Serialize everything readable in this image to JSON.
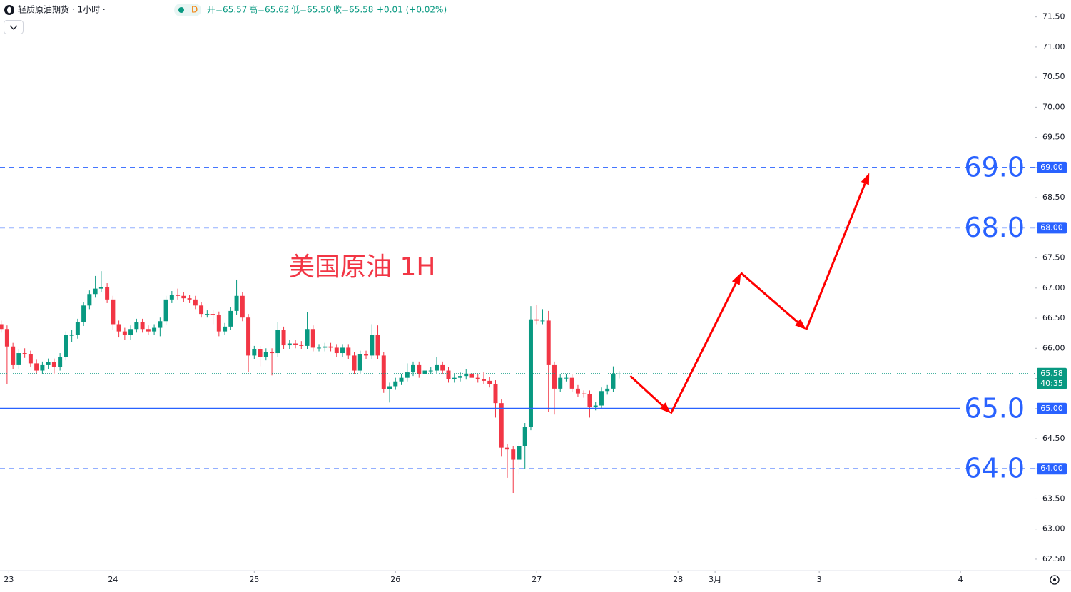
{
  "header": {
    "symbol": "轻质原油期货 · 1小时 ·",
    "badge": "D",
    "open": "开=65.57",
    "high": "高=65.62",
    "low": "低=65.50",
    "close": "收=65.58",
    "change": "+0.01 (+0.02%)"
  },
  "chart_data": {
    "type": "candlestick",
    "annotation": "美国原油 1H",
    "up_color": "#089981",
    "down_color": "#f23645",
    "x": [
      -19,
      -18,
      -17,
      -16,
      -15,
      -14,
      -13,
      -12,
      -11,
      -10,
      -9,
      -8,
      -7,
      -6,
      -5,
      -4,
      -3,
      -2,
      -1,
      0,
      1,
      2,
      3,
      4,
      5,
      6,
      7,
      8,
      9,
      10,
      11,
      12,
      13,
      14,
      15,
      16,
      17,
      18,
      19,
      20,
      21,
      22,
      23,
      24,
      25,
      26,
      27,
      28,
      29,
      30,
      31,
      32,
      33,
      34,
      35,
      36,
      37,
      38,
      39,
      40,
      41,
      42,
      43,
      44,
      45,
      46,
      47,
      48,
      49,
      50,
      51,
      52,
      53,
      54,
      55,
      56,
      57,
      58,
      59,
      60,
      61,
      62,
      63,
      64,
      65,
      66,
      67,
      68,
      69,
      70,
      71,
      72,
      73,
      74,
      75,
      76,
      77,
      78,
      79,
      80,
      81,
      82,
      83,
      84,
      85,
      86
    ],
    "open": [
      66.4,
      66.32,
      66.03,
      65.72,
      65.92,
      65.9,
      65.75,
      65.63,
      65.72,
      65.77,
      65.69,
      65.86,
      66.22,
      66.22,
      66.43,
      66.71,
      66.9,
      66.99,
      67.02,
      66.81,
      66.4,
      66.28,
      66.22,
      66.32,
      66.43,
      66.32,
      66.28,
      66.34,
      66.45,
      66.81,
      66.89,
      66.87,
      66.83,
      66.81,
      66.71,
      66.57,
      66.57,
      66.55,
      66.28,
      66.36,
      66.62,
      66.87,
      66.51,
      65.88,
      65.98,
      65.86,
      65.94,
      65.92,
      66.3,
      66.05,
      66.08,
      66.06,
      66.04,
      66.32,
      66.01,
      66.01,
      66.03,
      66.01,
      65.92,
      66.01,
      65.88,
      65.63,
      65.9,
      65.88,
      66.22,
      65.88,
      65.32,
      65.37,
      65.45,
      65.51,
      65.6,
      65.72,
      65.57,
      65.63,
      65.63,
      65.72,
      65.63,
      65.49,
      65.51,
      65.54,
      65.58,
      65.51,
      65.49,
      65.46,
      65.41,
      65.09,
      64.35,
      64.32,
      64.15,
      64.38,
      64.7,
      66.48,
      66.46,
      66.46,
      65.72,
      65.33,
      65.51,
      65.51,
      65.33,
      65.25,
      65.24,
      65.03,
      65.05,
      65.29,
      65.33,
      65.57
    ],
    "high": [
      66.46,
      66.38,
      66.09,
      65.98,
      66.0,
      65.96,
      65.81,
      65.78,
      65.83,
      65.83,
      65.92,
      66.28,
      66.3,
      66.49,
      66.77,
      66.96,
      67.2,
      67.28,
      67.08,
      66.87,
      66.46,
      66.34,
      66.38,
      66.49,
      66.49,
      66.38,
      66.4,
      66.51,
      66.87,
      66.95,
      66.99,
      66.93,
      66.89,
      66.87,
      66.77,
      66.63,
      66.63,
      66.61,
      66.42,
      66.68,
      67.14,
      66.93,
      66.57,
      66.04,
      66.04,
      66.0,
      66.0,
      66.44,
      66.36,
      66.14,
      66.14,
      66.12,
      66.6,
      66.38,
      66.07,
      66.09,
      66.09,
      66.07,
      66.07,
      66.07,
      65.94,
      65.96,
      65.96,
      66.4,
      66.38,
      65.94,
      65.43,
      65.51,
      65.57,
      65.75,
      65.78,
      65.78,
      65.69,
      65.69,
      65.85,
      65.78,
      65.69,
      65.57,
      65.6,
      65.66,
      65.64,
      65.57,
      65.6,
      65.52,
      65.47,
      65.15,
      64.41,
      64.38,
      64.44,
      64.76,
      66.7,
      66.72,
      66.65,
      66.62,
      65.78,
      65.57,
      65.57,
      65.57,
      65.39,
      65.3,
      65.3,
      65.11,
      65.35,
      65.39,
      65.7,
      65.62
    ],
    "low": [
      66.26,
      65.4,
      65.66,
      65.66,
      65.84,
      65.69,
      65.57,
      65.57,
      65.66,
      65.58,
      65.63,
      65.8,
      66.1,
      66.16,
      66.37,
      66.65,
      66.84,
      66.93,
      66.75,
      66.3,
      66.18,
      66.14,
      66.14,
      66.26,
      66.26,
      66.22,
      66.22,
      66.2,
      66.39,
      66.75,
      66.81,
      66.77,
      66.75,
      66.65,
      66.51,
      66.51,
      66.4,
      66.2,
      66.22,
      66.3,
      66.56,
      66.45,
      65.6,
      65.82,
      65.7,
      65.8,
      65.55,
      65.86,
      65.99,
      65.99,
      66.0,
      65.98,
      65.98,
      65.95,
      65.95,
      65.95,
      65.95,
      65.86,
      65.86,
      65.82,
      65.57,
      65.57,
      65.82,
      65.82,
      65.82,
      65.26,
      65.1,
      65.31,
      65.39,
      65.45,
      65.54,
      65.51,
      65.51,
      65.57,
      65.57,
      65.57,
      65.43,
      65.43,
      65.45,
      65.48,
      65.45,
      65.43,
      65.4,
      65.35,
      64.85,
      64.2,
      63.85,
      63.6,
      63.9,
      64.0,
      64.64,
      66.4,
      66.4,
      64.95,
      64.9,
      65.27,
      65.45,
      65.27,
      65.19,
      65.18,
      64.85,
      64.97,
      64.99,
      65.23,
      65.27,
      65.5
    ],
    "close": [
      66.32,
      66.03,
      65.72,
      65.92,
      65.9,
      65.75,
      65.63,
      65.72,
      65.77,
      65.69,
      65.86,
      66.22,
      66.22,
      66.43,
      66.71,
      66.9,
      66.99,
      67.02,
      66.81,
      66.4,
      66.28,
      66.22,
      66.32,
      66.43,
      66.32,
      66.28,
      66.34,
      66.45,
      66.81,
      66.89,
      66.87,
      66.83,
      66.81,
      66.71,
      66.57,
      66.57,
      66.55,
      66.28,
      66.36,
      66.62,
      66.87,
      66.51,
      65.88,
      65.98,
      65.86,
      65.94,
      65.92,
      66.3,
      66.05,
      66.08,
      66.06,
      66.04,
      66.32,
      66.01,
      66.01,
      66.03,
      66.01,
      65.92,
      66.01,
      65.88,
      65.63,
      65.9,
      65.88,
      66.22,
      65.88,
      65.32,
      65.37,
      65.45,
      65.51,
      65.6,
      65.72,
      65.57,
      65.63,
      65.63,
      65.72,
      65.63,
      65.49,
      65.51,
      65.54,
      65.58,
      65.51,
      65.49,
      65.46,
      65.41,
      65.09,
      64.35,
      64.32,
      64.15,
      64.38,
      64.7,
      66.48,
      66.46,
      66.46,
      65.72,
      65.33,
      65.51,
      65.51,
      65.33,
      65.25,
      65.24,
      65.03,
      65.05,
      65.29,
      65.33,
      65.57,
      65.58
    ],
    "xlim": [
      -19.2,
      156.6
    ],
    "xticks": [
      {
        "value": -17.7,
        "label": "23"
      },
      {
        "value": 0,
        "label": "24"
      },
      {
        "value": 24,
        "label": "25"
      },
      {
        "value": 48,
        "label": "26"
      },
      {
        "value": 72,
        "label": "27"
      },
      {
        "value": 96,
        "label": "28"
      },
      {
        "value": 102.3,
        "label": "3月"
      },
      {
        "value": 120,
        "label": "3"
      },
      {
        "value": 144,
        "label": "4"
      }
    ],
    "ylim": [
      62.31,
      71.78
    ],
    "yticks": [
      {
        "value": 62.5,
        "label": "62.50"
      },
      {
        "value": 63,
        "label": "63.00"
      },
      {
        "value": 63.5,
        "label": "63.50"
      },
      {
        "value": 64,
        "label": "64.00"
      },
      {
        "value": 64.5,
        "label": "64.50"
      },
      {
        "value": 65,
        "label": "65.00"
      },
      {
        "value": 65.5,
        "label": "65.50"
      },
      {
        "value": 66,
        "label": "66.00"
      },
      {
        "value": 66.5,
        "label": "66.50"
      },
      {
        "value": 67,
        "label": "67.00"
      },
      {
        "value": 67.5,
        "label": "67.50"
      },
      {
        "value": 68,
        "label": "68.00"
      },
      {
        "value": 68.5,
        "label": "68.50"
      },
      {
        "value": 69,
        "label": "69.00"
      },
      {
        "value": 69.5,
        "label": "69.50"
      },
      {
        "value": 70,
        "label": "70.00"
      },
      {
        "value": 70.5,
        "label": "70.50"
      },
      {
        "value": 71,
        "label": "71.00"
      },
      {
        "value": 71.5,
        "label": "71.50"
      }
    ],
    "levels": [
      {
        "value": 69,
        "label": "69.0",
        "tag": "69.00",
        "style": "dashed",
        "color": "#2962ff"
      },
      {
        "value": 68,
        "label": "68.0",
        "tag": "68.00",
        "style": "dashed",
        "color": "#2962ff"
      },
      {
        "value": 65,
        "label": "65.0",
        "tag": "65.00",
        "style": "solid",
        "color": "#2962ff"
      },
      {
        "value": 64,
        "label": "64.0",
        "tag": "64.00",
        "style": "dashed",
        "color": "#2962ff"
      }
    ],
    "last_price": {
      "value": 65.58,
      "tag": "65.58",
      "countdown": "40:35",
      "color": "#089981"
    },
    "projection": {
      "color": "#f00",
      "x": [
        87.9,
        94.8,
        106.7,
        117.8,
        128.5
      ],
      "y": [
        65.54,
        64.92,
        67.25,
        66.31,
        68.91
      ]
    }
  }
}
